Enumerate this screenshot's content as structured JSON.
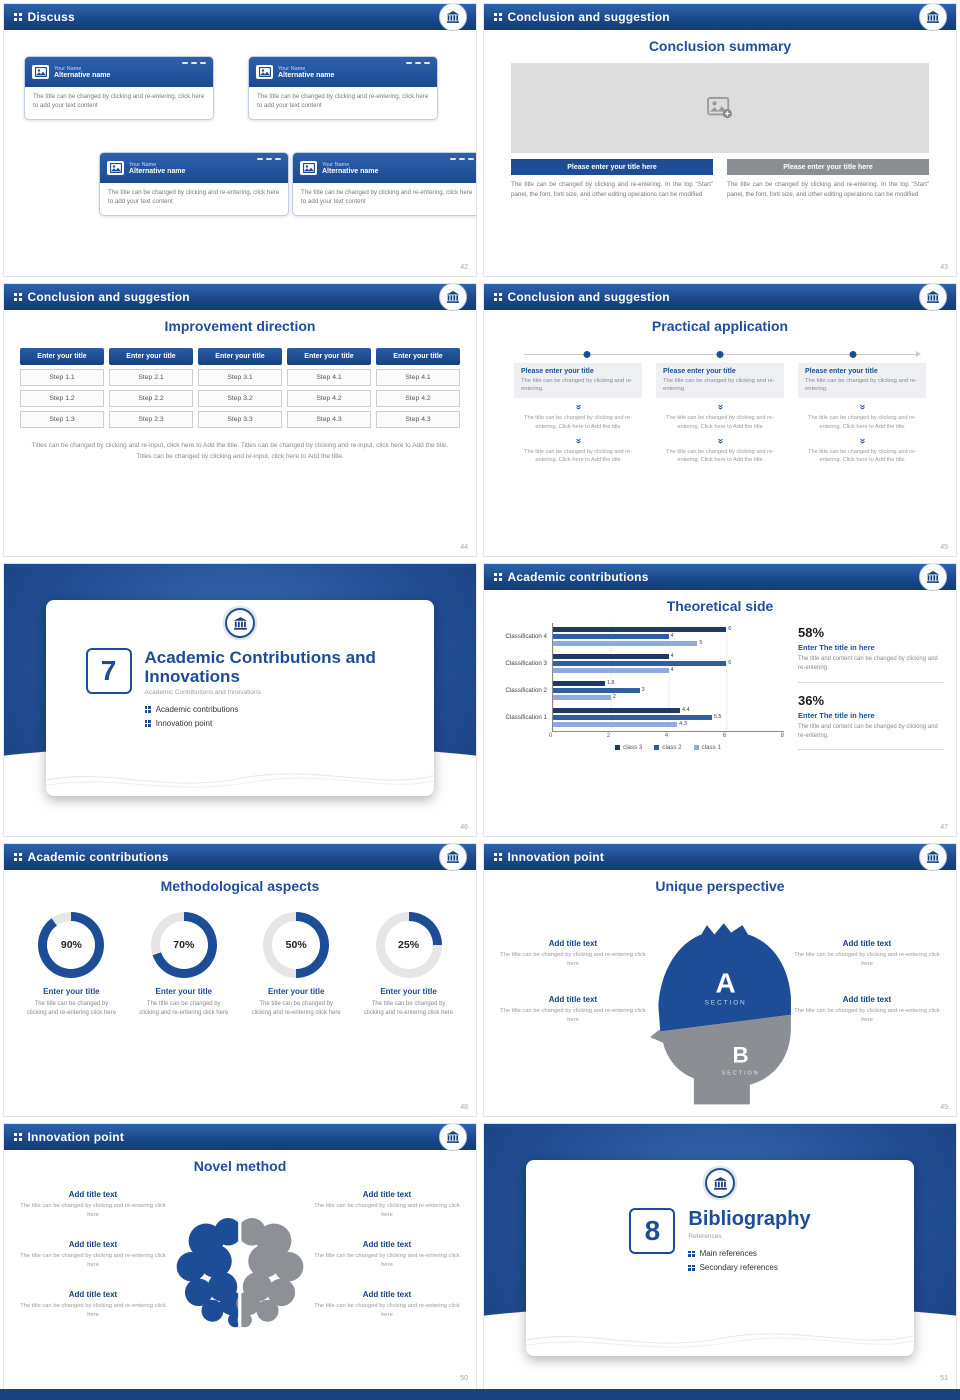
{
  "icons": {
    "double_chevron": "»"
  },
  "chart_data": {
    "type": "bar",
    "orientation": "horizontal",
    "title": "Theoretical side",
    "xlim": [
      0,
      8
    ],
    "x_ticks": [
      "0",
      "2",
      "4",
      "6",
      "8"
    ],
    "legend": [
      "class 3",
      "class 2",
      "class 1"
    ],
    "legend_colors": [
      "#1f3864",
      "#2e5fa3",
      "#8faadc"
    ],
    "series_colors": [
      "#1f3864",
      "#2e5fa3",
      "#8faadc"
    ],
    "rows": [
      {
        "category": "Classification 4",
        "values": [
          6,
          4,
          5
        ]
      },
      {
        "category": "Classification 3",
        "values": [
          4,
          6,
          4
        ]
      },
      {
        "category": "Classification 2",
        "values": [
          1.8,
          3,
          2
        ]
      },
      {
        "category": "Classification 1",
        "values": [
          4.4,
          5.5,
          4.3
        ]
      }
    ]
  },
  "slides": [
    {
      "header": "Discuss",
      "page": "42",
      "cards": [
        {
          "name_label": "Your Name",
          "alt_label": "Alternative name",
          "body": "The title can be changed by clicking and re-entering, click here to add your text content"
        },
        {
          "name_label": "Your Name",
          "alt_label": "Alternative name",
          "body": "The title can be changed by clicking and re-entering, click here to add your text content"
        },
        {
          "name_label": "Your Name",
          "alt_label": "Alternative name",
          "body": "The title can be changed by clicking and re-entering, click here to add your text content"
        },
        {
          "name_label": "Your Name",
          "alt_label": "Alternative name",
          "body": "The title can be changed by clicking and re-entering, click here to add your text content"
        }
      ]
    },
    {
      "header": "Conclusion and suggestion",
      "page": "43",
      "title": "Conclusion summary",
      "left_button": "Please enter your title here",
      "right_button": "Please enter your title here",
      "left_text": "The title can be changed by clicking and re-entering. In the top \"Start\" panel, the font, font size, and other editing operations can be modified",
      "right_text": "The title can be changed by clicking and re-entering. In the top \"Start\" panel, the font, font size, and other editing operations can be modified"
    },
    {
      "header": "Conclusion and suggestion",
      "page": "44",
      "title": "Improvement direction",
      "columns": [
        {
          "title": "Enter your title",
          "steps": [
            "Step 1.1",
            "Step 1.2",
            "Step 1.3"
          ]
        },
        {
          "title": "Enter your title",
          "steps": [
            "Step 2.1",
            "Step 2.2",
            "Step 2.3"
          ]
        },
        {
          "title": "Enter your title",
          "steps": [
            "Step 3.1",
            "Step 3.2",
            "Step 3.3"
          ]
        },
        {
          "title": "Enter your title",
          "steps": [
            "Step 4.1",
            "Step 4.2",
            "Step 4.3"
          ]
        },
        {
          "title": "Enter your title",
          "steps": [
            "Step 4.1",
            "Step 4.2",
            "Step 4.3"
          ]
        }
      ],
      "footer": "Titles can be changed by clicking and re-input, click here to Add the title. Titles can be changed by clicking and re-input, click here to Add the title. Titles can be changed by clicking and re-input, click here to Add the title."
    },
    {
      "header": "Conclusion and suggestion",
      "page": "45",
      "title": "Practical application",
      "columns": [
        {
          "box_title": "Please enter your title",
          "box_body": "The title can be changed by clicking and re-entering.",
          "text1": "The title can be changed by clicking and re-entering. Click here to Add the title",
          "text2": "The title can be changed by clicking and re-entering. Click here to Add the title"
        },
        {
          "box_title": "Please enter your title",
          "box_body": "The title can be changed by clicking and re-entering.",
          "text1": "The title can be changed by clicking and re-entering. Click here to Add the title",
          "text2": "The title can be changed by clicking and re-entering. Click here to Add the title"
        },
        {
          "box_title": "Please enter your title",
          "box_body": "The title can be changed by clicking and re-entering.",
          "text1": "The title can be changed by clicking and re-entering. Click here to Add the title",
          "text2": "The title can be changed by clicking and re-entering. Click here to Add the title"
        }
      ]
    },
    {
      "number": "7",
      "page": "46",
      "title": "Academic Contributions and Innovations",
      "subtitle": "Academic Contributions and Innovations",
      "bullets": [
        "Academic contributions",
        "Innovation point"
      ]
    },
    {
      "header": "Academic contributions",
      "page": "47",
      "title": "Theoretical side",
      "stats": [
        {
          "percent": "58%",
          "title": "Enter The title in here",
          "body": "The title and content can be changed by clicking and re-entering."
        },
        {
          "percent": "36%",
          "title": "Enter The title in here",
          "body": "The title and content can be changed by clicking and re-entering."
        }
      ]
    },
    {
      "header": "Academic contributions",
      "page": "48",
      "title": "Methodological aspects",
      "donuts": [
        {
          "percent": 90,
          "label": "90%",
          "title": "Enter your title",
          "body": "The title can be changed by clicking and re-entering click here"
        },
        {
          "percent": 70,
          "label": "70%",
          "title": "Enter your title",
          "body": "The title can be changed by clicking and re-entering click here"
        },
        {
          "percent": 50,
          "label": "50%",
          "title": "Enter your title",
          "body": "The title can be changed by clicking and re-entering click here"
        },
        {
          "percent": 25,
          "label": "25%",
          "title": "Enter your title",
          "body": "The title can be changed by clicking and re-entering click here"
        }
      ]
    },
    {
      "header": "Innovation point",
      "page": "49",
      "title": "Unique perspective",
      "section_a": "A",
      "section_a_label": "SECTION",
      "section_b": "B",
      "section_b_label": "SECTION",
      "left_blocks": [
        {
          "title": "Add title text",
          "body": "The title can be changed by clicking and re-entering click here"
        },
        {
          "title": "Add title text",
          "body": "The title can be changed by clicking and re-entering click here"
        }
      ],
      "right_blocks": [
        {
          "title": "Add title text",
          "body": "The title can be changed by clicking and re-entering click here"
        },
        {
          "title": "Add title text",
          "body": "The title can be changed by clicking and re-entering click here"
        }
      ]
    },
    {
      "header": "Innovation point",
      "page": "50",
      "title": "Novel method",
      "left_blocks": [
        {
          "title": "Add title text",
          "body": "The title can be changed by clicking and re-entering click here"
        },
        {
          "title": "Add title text",
          "body": "The title can be changed by clicking and re-entering click here"
        },
        {
          "title": "Add title text",
          "body": "The title can be changed by clicking and re-entering click here"
        }
      ],
      "right_blocks": [
        {
          "title": "Add title text",
          "body": "The title can be changed by clicking and re-entering click here"
        },
        {
          "title": "Add title text",
          "body": "The title can be changed by clicking and re-entering click here"
        },
        {
          "title": "Add title text",
          "body": "The title can be changed by clicking and re-entering click here"
        }
      ]
    },
    {
      "number": "8",
      "page": "51",
      "title": "Bibliography",
      "subtitle": "References",
      "bullets": [
        "Main references",
        "Secondary references"
      ]
    }
  ]
}
